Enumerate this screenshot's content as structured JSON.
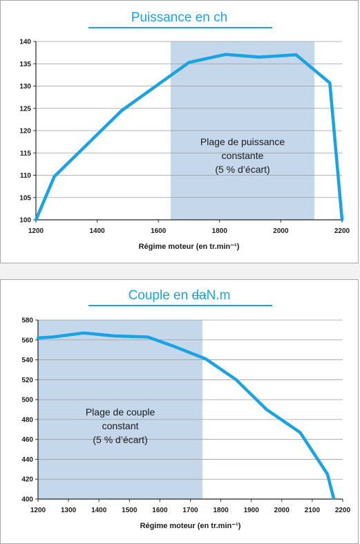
{
  "chart_data": [
    {
      "id": "power",
      "type": "line",
      "title": "Puissance en ch",
      "xlabel": "Régime moteur (en tr.min⁻¹)",
      "ylabel": "",
      "xlim": [
        1200,
        2200
      ],
      "ylim": [
        100,
        140
      ],
      "xticks": [
        1200,
        1400,
        1600,
        1800,
        2000,
        2200
      ],
      "yticks": [
        100,
        105,
        110,
        115,
        120,
        125,
        130,
        135,
        140
      ],
      "grid": true,
      "band": {
        "from": 1640,
        "to": 2110,
        "color": "#c5d7ea"
      },
      "annotation": [
        "Plage de puissance",
        "constante",
        "(5 % d’écart)"
      ],
      "series": [
        {
          "color": "#1aa3e0",
          "x": [
            1200,
            1260,
            1480,
            1700,
            1820,
            1930,
            2050,
            2160,
            2200
          ],
          "y": [
            100,
            109.7,
            124.5,
            135.3,
            137.1,
            136.5,
            137.0,
            130.7,
            100
          ]
        }
      ]
    },
    {
      "id": "torque",
      "type": "line",
      "title_prefix": "Couple en ",
      "title_strike": "da",
      "title_suffix": "N.m",
      "xlabel": "Régime moteur (en tr.min⁻¹)",
      "ylabel": "",
      "xlim": [
        1200,
        2200
      ],
      "ylim": [
        400,
        580
      ],
      "xticks": [
        1200,
        1300,
        1400,
        1500,
        1600,
        1700,
        1800,
        1900,
        2000,
        2100,
        2200
      ],
      "yticks": [
        400,
        420,
        440,
        460,
        480,
        500,
        520,
        540,
        560,
        580
      ],
      "grid": true,
      "band": {
        "from": 1200,
        "to": 1740,
        "color": "#c5d7ea"
      },
      "annotation": [
        "Plage de couple",
        "constant",
        "(5 % d’écart)"
      ],
      "series": [
        {
          "color": "#1aa3e0",
          "x": [
            1200,
            1250,
            1350,
            1450,
            1560,
            1650,
            1750,
            1850,
            1950,
            2060,
            2150,
            2170
          ],
          "y": [
            562,
            563,
            567,
            564,
            563,
            553,
            541,
            520,
            490,
            467,
            425,
            401
          ]
        }
      ]
    }
  ]
}
